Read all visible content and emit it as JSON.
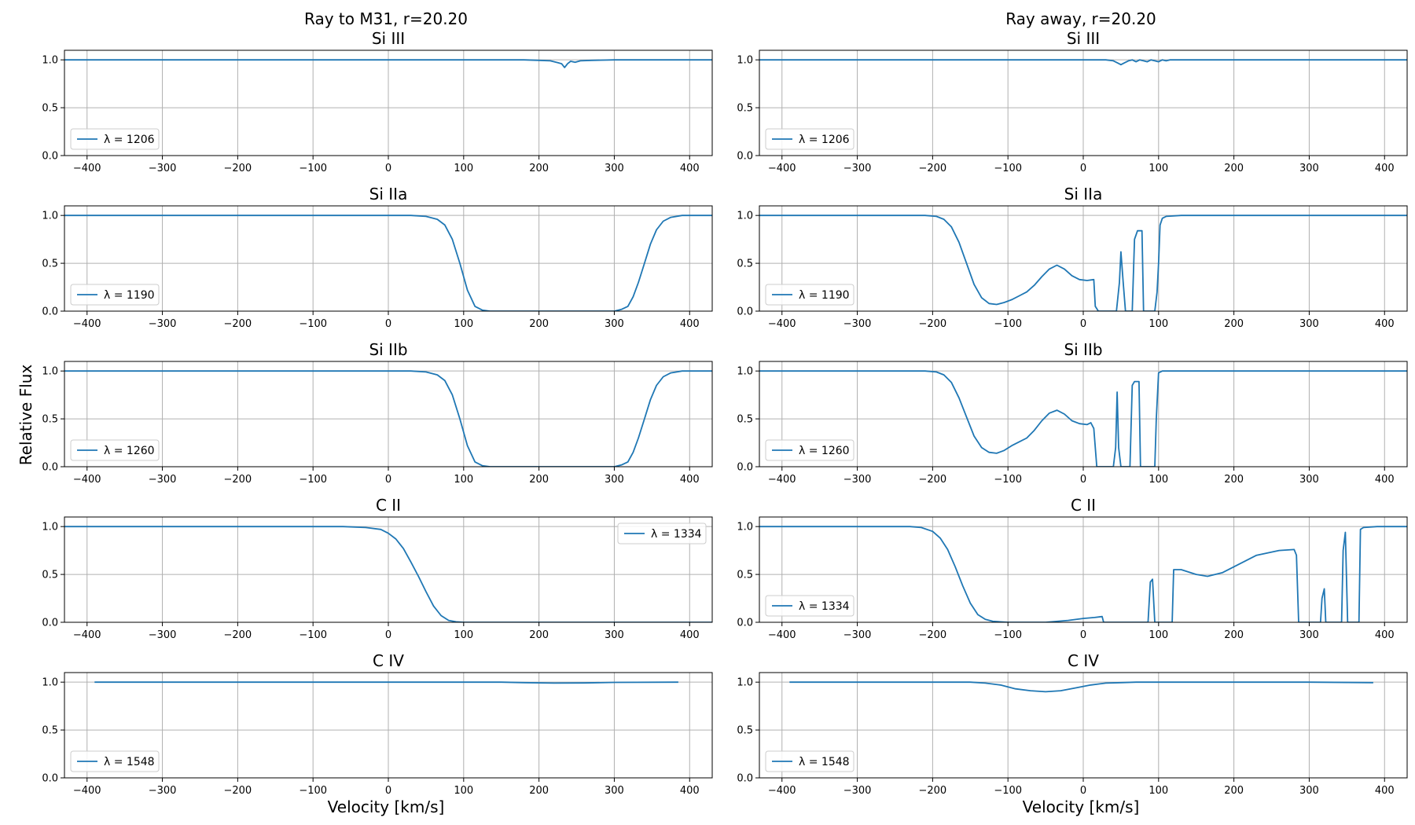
{
  "figure": {
    "columns": [
      {
        "title": "Ray to M31, r=20.20"
      },
      {
        "title": "Ray away, r=20.20"
      }
    ],
    "xlabel": "Velocity [km/s]",
    "ylabel": "Relative Flux",
    "series_color": "#1f77b4"
  },
  "chart_data": [
    {
      "type": "line",
      "column": 0,
      "row": 0,
      "title": "Si III",
      "legend": "λ = 1206",
      "legend_loc": "lower-left",
      "xlim": [
        -430,
        430
      ],
      "ylim": [
        0,
        1.1
      ],
      "xticks": [
        -400,
        -300,
        -200,
        -100,
        0,
        100,
        200,
        300,
        400
      ],
      "yticks": [
        0.0,
        0.5,
        1.0
      ],
      "grid": true,
      "x": [
        -430,
        180,
        200,
        215,
        225,
        230,
        234,
        238,
        242,
        248,
        255,
        270,
        300,
        430
      ],
      "y": [
        1.0,
        1.0,
        0.995,
        0.99,
        0.97,
        0.96,
        0.92,
        0.96,
        0.985,
        0.975,
        0.99,
        0.995,
        1.0,
        1.0
      ]
    },
    {
      "type": "line",
      "column": 0,
      "row": 1,
      "title": "Si IIa",
      "legend": "λ = 1190",
      "legend_loc": "lower-left",
      "xlim": [
        -430,
        430
      ],
      "ylim": [
        0,
        1.1
      ],
      "xticks": [
        -400,
        -300,
        -200,
        -100,
        0,
        100,
        200,
        300,
        400
      ],
      "yticks": [
        0.0,
        0.5,
        1.0
      ],
      "grid": true,
      "x": [
        -430,
        30,
        50,
        65,
        75,
        85,
        95,
        105,
        115,
        125,
        135,
        300,
        310,
        318,
        325,
        332,
        340,
        348,
        356,
        365,
        375,
        390,
        430
      ],
      "y": [
        1.0,
        1.0,
        0.99,
        0.96,
        0.9,
        0.75,
        0.5,
        0.22,
        0.05,
        0.01,
        0.0,
        0.0,
        0.02,
        0.05,
        0.15,
        0.3,
        0.5,
        0.7,
        0.85,
        0.94,
        0.98,
        1.0,
        1.0
      ]
    },
    {
      "type": "line",
      "column": 0,
      "row": 2,
      "title": "Si IIb",
      "legend": "λ = 1260",
      "legend_loc": "lower-left",
      "xlim": [
        -430,
        430
      ],
      "ylim": [
        0,
        1.1
      ],
      "xticks": [
        -400,
        -300,
        -200,
        -100,
        0,
        100,
        200,
        300,
        400
      ],
      "yticks": [
        0.0,
        0.5,
        1.0
      ],
      "grid": true,
      "x": [
        -430,
        30,
        50,
        65,
        75,
        85,
        95,
        105,
        115,
        125,
        135,
        300,
        310,
        318,
        325,
        332,
        340,
        348,
        356,
        365,
        375,
        390,
        430
      ],
      "y": [
        1.0,
        1.0,
        0.99,
        0.96,
        0.9,
        0.75,
        0.5,
        0.22,
        0.05,
        0.01,
        0.0,
        0.0,
        0.02,
        0.05,
        0.15,
        0.3,
        0.5,
        0.7,
        0.85,
        0.94,
        0.98,
        1.0,
        1.0
      ]
    },
    {
      "type": "line",
      "column": 0,
      "row": 3,
      "title": "C II",
      "legend": "λ = 1334",
      "legend_loc": "upper-right",
      "xlim": [
        -430,
        430
      ],
      "ylim": [
        0,
        1.1
      ],
      "xticks": [
        -400,
        -300,
        -200,
        -100,
        0,
        100,
        200,
        300,
        400
      ],
      "yticks": [
        0.0,
        0.5,
        1.0
      ],
      "grid": true,
      "x": [
        -430,
        -60,
        -30,
        -10,
        0,
        10,
        20,
        30,
        40,
        50,
        60,
        70,
        80,
        90,
        100,
        430
      ],
      "y": [
        1.0,
        1.0,
        0.99,
        0.97,
        0.93,
        0.87,
        0.77,
        0.63,
        0.48,
        0.32,
        0.17,
        0.07,
        0.02,
        0.005,
        0.0,
        0.0
      ]
    },
    {
      "type": "line",
      "column": 0,
      "row": 4,
      "title": "C IV",
      "legend": "λ = 1548",
      "legend_loc": "lower-left",
      "xlim": [
        -430,
        430
      ],
      "ylim": [
        0,
        1.1
      ],
      "xticks": [
        -400,
        -300,
        -200,
        -100,
        0,
        100,
        200,
        300,
        400
      ],
      "yticks": [
        0.0,
        0.5,
        1.0
      ],
      "grid": true,
      "x": [
        -390,
        150,
        180,
        220,
        260,
        300,
        385
      ],
      "y": [
        1.0,
        1.0,
        0.995,
        0.99,
        0.992,
        0.997,
        1.0
      ]
    },
    {
      "type": "line",
      "column": 1,
      "row": 0,
      "title": "Si III",
      "legend": "λ = 1206",
      "legend_loc": "lower-left",
      "xlim": [
        -430,
        430
      ],
      "ylim": [
        0,
        1.1
      ],
      "xticks": [
        -400,
        -300,
        -200,
        -100,
        0,
        100,
        200,
        300,
        400
      ],
      "yticks": [
        0.0,
        0.5,
        1.0
      ],
      "grid": true,
      "x": [
        -430,
        30,
        40,
        45,
        50,
        55,
        60,
        65,
        70,
        75,
        80,
        85,
        90,
        95,
        100,
        105,
        110,
        115,
        120,
        430
      ],
      "y": [
        1.0,
        1.0,
        0.99,
        0.97,
        0.95,
        0.97,
        0.99,
        1.0,
        0.98,
        1.0,
        0.99,
        0.98,
        1.0,
        0.99,
        0.98,
        1.0,
        0.99,
        1.0,
        1.0,
        1.0
      ]
    },
    {
      "type": "line",
      "column": 1,
      "row": 1,
      "title": "Si IIa",
      "legend": "λ = 1190",
      "legend_loc": "lower-left",
      "xlim": [
        -430,
        430
      ],
      "ylim": [
        0,
        1.1
      ],
      "xticks": [
        -400,
        -300,
        -200,
        -100,
        0,
        100,
        200,
        300,
        400
      ],
      "yticks": [
        0.0,
        0.5,
        1.0
      ],
      "grid": true,
      "x": [
        -430,
        -210,
        -195,
        -185,
        -175,
        -165,
        -155,
        -145,
        -135,
        -125,
        -115,
        -105,
        -95,
        -85,
        -75,
        -65,
        -55,
        -45,
        -35,
        -25,
        -15,
        -5,
        5,
        14,
        16,
        20,
        44,
        48,
        50,
        53,
        56,
        65,
        68,
        72,
        78,
        80,
        95,
        98,
        100,
        102,
        105,
        110,
        130,
        430
      ],
      "y": [
        1.0,
        1.0,
        0.99,
        0.96,
        0.88,
        0.72,
        0.5,
        0.28,
        0.14,
        0.08,
        0.07,
        0.09,
        0.12,
        0.16,
        0.2,
        0.27,
        0.36,
        0.44,
        0.48,
        0.44,
        0.37,
        0.33,
        0.32,
        0.33,
        0.05,
        0.0,
        0.0,
        0.3,
        0.62,
        0.3,
        0.0,
        0.0,
        0.75,
        0.84,
        0.84,
        0.0,
        0.0,
        0.2,
        0.5,
        0.9,
        0.97,
        0.99,
        1.0,
        1.0
      ]
    },
    {
      "type": "line",
      "column": 1,
      "row": 2,
      "title": "Si IIb",
      "legend": "λ = 1260",
      "legend_loc": "lower-left",
      "xlim": [
        -430,
        430
      ],
      "ylim": [
        0,
        1.1
      ],
      "xticks": [
        -400,
        -300,
        -200,
        -100,
        0,
        100,
        200,
        300,
        400
      ],
      "yticks": [
        0.0,
        0.5,
        1.0
      ],
      "grid": true,
      "x": [
        -430,
        -210,
        -195,
        -185,
        -175,
        -165,
        -155,
        -145,
        -135,
        -125,
        -115,
        -105,
        -95,
        -85,
        -75,
        -65,
        -55,
        -45,
        -35,
        -25,
        -15,
        -5,
        5,
        10,
        14,
        18,
        40,
        43,
        45,
        47,
        50,
        62,
        65,
        68,
        74,
        76,
        95,
        97,
        100,
        105,
        130,
        430
      ],
      "y": [
        1.0,
        1.0,
        0.99,
        0.96,
        0.88,
        0.72,
        0.52,
        0.32,
        0.2,
        0.15,
        0.14,
        0.17,
        0.22,
        0.26,
        0.3,
        0.38,
        0.48,
        0.56,
        0.59,
        0.55,
        0.48,
        0.45,
        0.44,
        0.46,
        0.4,
        0.0,
        0.0,
        0.2,
        0.78,
        0.2,
        0.0,
        0.0,
        0.85,
        0.89,
        0.89,
        0.0,
        0.0,
        0.5,
        0.98,
        1.0,
        1.0,
        1.0
      ]
    },
    {
      "type": "line",
      "column": 1,
      "row": 3,
      "title": "C II",
      "legend": "λ = 1334",
      "legend_loc": "lower-left",
      "xlim": [
        -430,
        430
      ],
      "ylim": [
        0,
        1.1
      ],
      "xticks": [
        -400,
        -300,
        -200,
        -100,
        0,
        100,
        200,
        300,
        400
      ],
      "yticks": [
        0.0,
        0.5,
        1.0
      ],
      "grid": true,
      "x": [
        -430,
        -230,
        -215,
        -200,
        -190,
        -180,
        -170,
        -160,
        -150,
        -140,
        -130,
        -120,
        -100,
        -50,
        -20,
        0,
        15,
        25,
        27,
        86,
        89,
        92,
        95,
        118,
        120,
        130,
        150,
        165,
        185,
        205,
        230,
        260,
        280,
        283,
        286,
        315,
        317,
        320,
        322,
        343,
        345,
        348,
        351,
        366,
        368,
        372,
        390,
        430
      ],
      "y": [
        1.0,
        1.0,
        0.99,
        0.95,
        0.88,
        0.76,
        0.58,
        0.38,
        0.2,
        0.08,
        0.03,
        0.01,
        0.0,
        0.0,
        0.02,
        0.04,
        0.05,
        0.06,
        0.0,
        0.0,
        0.42,
        0.45,
        0.0,
        0.0,
        0.55,
        0.55,
        0.5,
        0.48,
        0.52,
        0.6,
        0.7,
        0.75,
        0.76,
        0.7,
        0.0,
        0.0,
        0.25,
        0.35,
        0.0,
        0.0,
        0.75,
        0.94,
        0.0,
        0.0,
        0.97,
        0.99,
        1.0,
        1.0
      ]
    },
    {
      "type": "line",
      "column": 1,
      "row": 4,
      "title": "C IV",
      "legend": "λ = 1548",
      "legend_loc": "lower-left",
      "xlim": [
        -430,
        430
      ],
      "ylim": [
        0,
        1.1
      ],
      "xticks": [
        -400,
        -300,
        -200,
        -100,
        0,
        100,
        200,
        300,
        400
      ],
      "yticks": [
        0.0,
        0.5,
        1.0
      ],
      "grid": true,
      "x": [
        -390,
        -150,
        -130,
        -110,
        -90,
        -70,
        -50,
        -30,
        -10,
        10,
        30,
        50,
        70,
        100,
        150,
        300,
        385
      ],
      "y": [
        1.0,
        1.0,
        0.99,
        0.97,
        0.93,
        0.91,
        0.9,
        0.91,
        0.94,
        0.97,
        0.99,
        0.995,
        1.0,
        1.0,
        1.0,
        1.0,
        0.995
      ]
    }
  ]
}
